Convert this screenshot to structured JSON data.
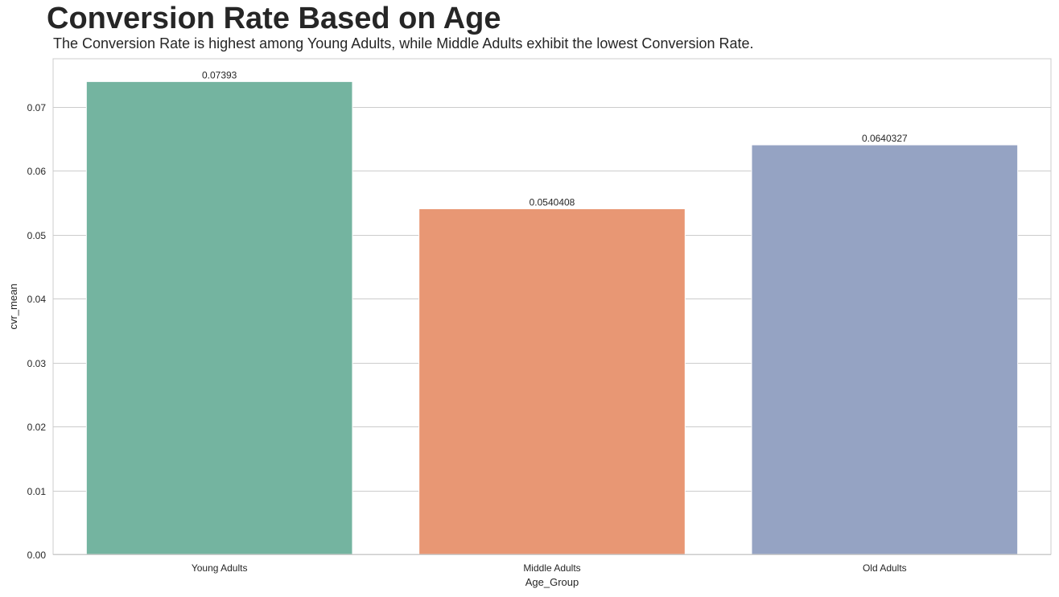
{
  "chart_data": {
    "type": "bar",
    "title": "Conversion Rate Based on Age",
    "subtitle": "The Conversion Rate is highest among Young Adults, while Middle Adults exhibit the lowest Conversion Rate.",
    "xlabel": "Age_Group",
    "ylabel": "cvr_mean",
    "categories": [
      "Young Adults",
      "Middle Adults",
      "Old Adults"
    ],
    "values": [
      0.07393,
      0.0540408,
      0.0640327
    ],
    "value_labels": [
      "0.07393",
      "0.0540408",
      "0.0640327"
    ],
    "colors": [
      "#74b4a0",
      "#e89774",
      "#95a3c3"
    ],
    "ylim": [
      0,
      0.0775
    ],
    "yticks": [
      0,
      0.01,
      0.02,
      0.03,
      0.04,
      0.05,
      0.06,
      0.07
    ],
    "ytick_labels": [
      "0.00",
      "0.01",
      "0.02",
      "0.03",
      "0.04",
      "0.05",
      "0.06",
      "0.07"
    ],
    "grid": "horizontal",
    "legend": "none"
  }
}
